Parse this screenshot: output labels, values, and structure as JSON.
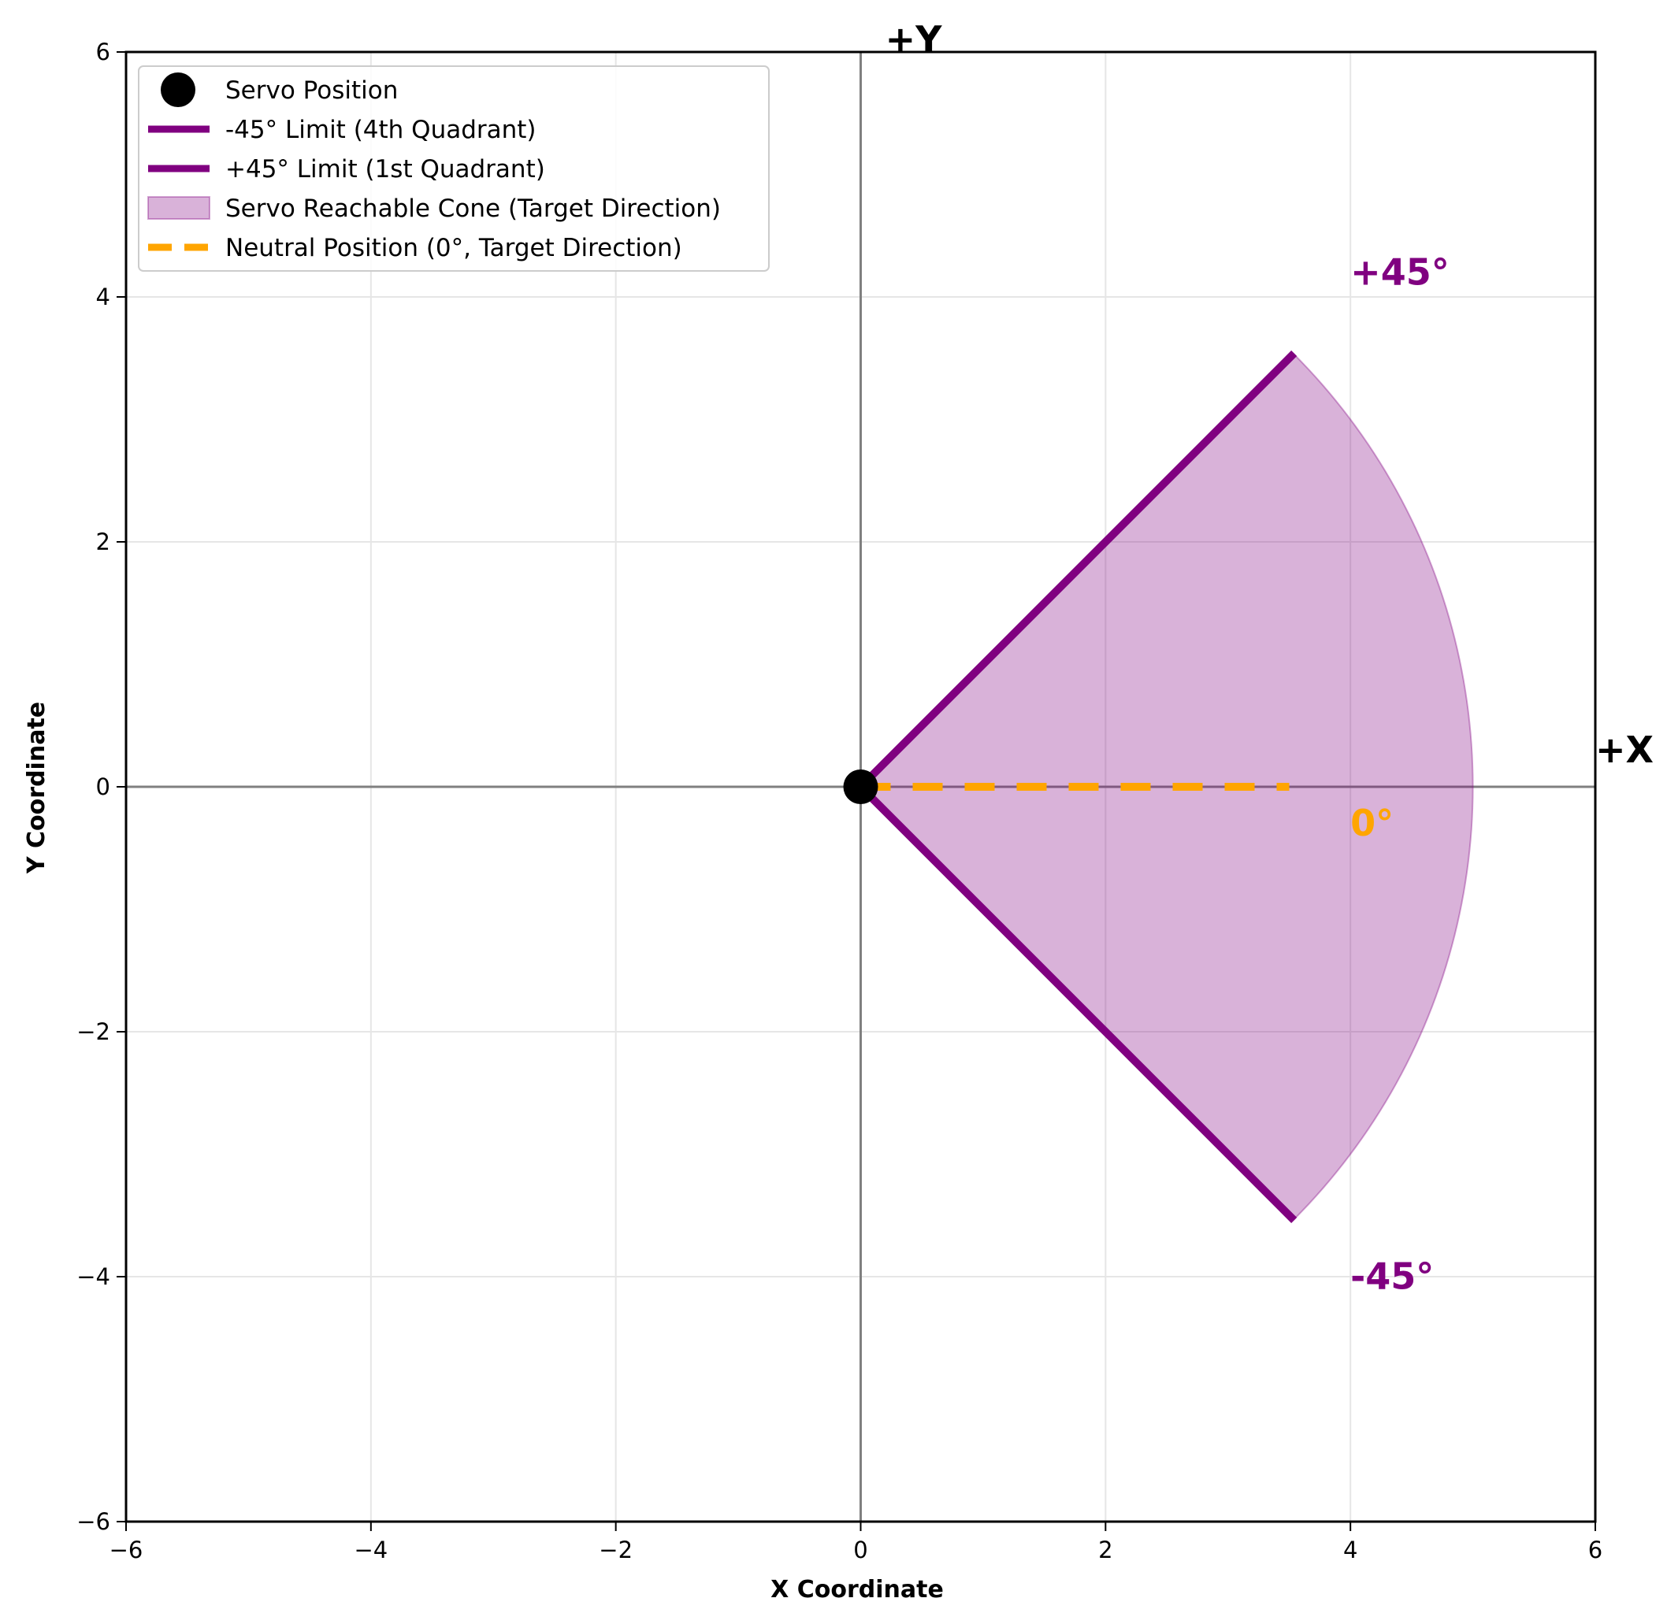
{
  "chart_data": {
    "type": "line",
    "title": "",
    "xlabel": "X Coordinate",
    "ylabel": "Y Coordinate",
    "xlim": [
      -6,
      6
    ],
    "ylim": [
      -6,
      6
    ],
    "grid": true,
    "legend_position": "top-left",
    "x_ticks": [
      {
        "value": -6,
        "label": "−6"
      },
      {
        "value": -4,
        "label": "−4"
      },
      {
        "value": -2,
        "label": "−2"
      },
      {
        "value": 0,
        "label": "0"
      },
      {
        "value": 2,
        "label": "2"
      },
      {
        "value": 4,
        "label": "4"
      },
      {
        "value": 6,
        "label": "6"
      }
    ],
    "y_ticks": [
      {
        "value": -6,
        "label": "−6"
      },
      {
        "value": -4,
        "label": "−4"
      },
      {
        "value": -2,
        "label": "−2"
      },
      {
        "value": 0,
        "label": "0"
      },
      {
        "value": 2,
        "label": "2"
      },
      {
        "value": 4,
        "label": "4"
      },
      {
        "value": 6,
        "label": "6"
      }
    ],
    "servo_position": {
      "x": 0,
      "y": 0
    },
    "reach_radius": 5,
    "cone_angle_range_deg": [
      -45,
      45
    ],
    "series": [
      {
        "name": "Servo Position",
        "kind": "point",
        "color": "#000000",
        "x": [
          0
        ],
        "y": [
          0
        ]
      },
      {
        "name": "-45° Limit (4th Quadrant)",
        "kind": "line",
        "color": "#800080",
        "x": [
          0,
          3.54
        ],
        "y": [
          0,
          -3.54
        ]
      },
      {
        "name": "+45° Limit (1st Quadrant)",
        "kind": "line",
        "color": "#800080",
        "x": [
          0,
          3.54
        ],
        "y": [
          0,
          3.54
        ]
      },
      {
        "name": "Servo Reachable Cone (Target Direction)",
        "kind": "area",
        "color": "#800080",
        "opacity": 0.3
      },
      {
        "name": "Neutral Position (0°, Target Direction)",
        "kind": "dashed-line",
        "color": "#FFA500",
        "x": [
          0,
          3.5
        ],
        "y": [
          0,
          0
        ]
      }
    ],
    "annotations": [
      {
        "id": "plus45",
        "text": "+45°",
        "x": 4.0,
        "y": 4.1,
        "color": "#800080"
      },
      {
        "id": "minus45",
        "text": "-45°",
        "x": 4.0,
        "y": -4.1,
        "color": "#800080"
      },
      {
        "id": "zero",
        "text": "0°",
        "x": 4.0,
        "y": -0.4,
        "color": "#FFA500"
      },
      {
        "id": "plusY",
        "text": "+Y",
        "x": 0.2,
        "y": 6.0,
        "color": "#000000"
      },
      {
        "id": "plusX",
        "text": "+X",
        "x": 6.0,
        "y": 0.2,
        "color": "#000000"
      }
    ],
    "colors": {
      "limit": "#800080",
      "cone_fill": "#800080",
      "neutral": "#FFA500",
      "servo": "#000000",
      "axis_line": "#808080",
      "grid": "#e6e6e6"
    }
  }
}
